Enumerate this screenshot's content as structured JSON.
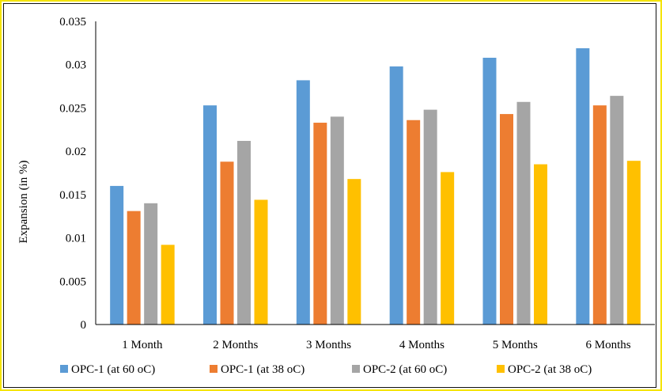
{
  "chart_data": {
    "type": "bar",
    "title": "",
    "xlabel": "",
    "ylabel": "Expansion (in %)",
    "ylim": [
      0,
      0.035
    ],
    "yticks": [
      "0",
      "0.005",
      "0.01",
      "0.015",
      "0.02",
      "0.025",
      "0.03",
      "0.035"
    ],
    "ytick_values": [
      0,
      0.005,
      0.01,
      0.015,
      0.02,
      0.025,
      0.03,
      0.035
    ],
    "grid": false,
    "legend_position": "bottom",
    "categories": [
      "1 Month",
      "2 Months",
      "3 Months",
      "4 Months",
      "5 Months",
      "6 Months"
    ],
    "series": [
      {
        "name": "OPC-1 (at 60 oC)",
        "color": "#5b9bd5",
        "values": [
          0.016,
          0.0253,
          0.0282,
          0.0298,
          0.0308,
          0.0319
        ]
      },
      {
        "name": "OPC-1 (at 38 oC)",
        "color": "#ed7d31",
        "values": [
          0.0131,
          0.0188,
          0.0233,
          0.0236,
          0.0243,
          0.0253
        ]
      },
      {
        "name": "OPC-2 (at 60 oC)",
        "color": "#a5a5a5",
        "values": [
          0.014,
          0.0212,
          0.024,
          0.0248,
          0.0257,
          0.0264
        ]
      },
      {
        "name": "OPC-2 (at 38 oC)",
        "color": "#ffc000",
        "values": [
          0.0092,
          0.0144,
          0.0168,
          0.0176,
          0.0185,
          0.0189
        ]
      }
    ]
  },
  "colors": {
    "frame_border": "#f5e400",
    "axis": "#000000"
  }
}
